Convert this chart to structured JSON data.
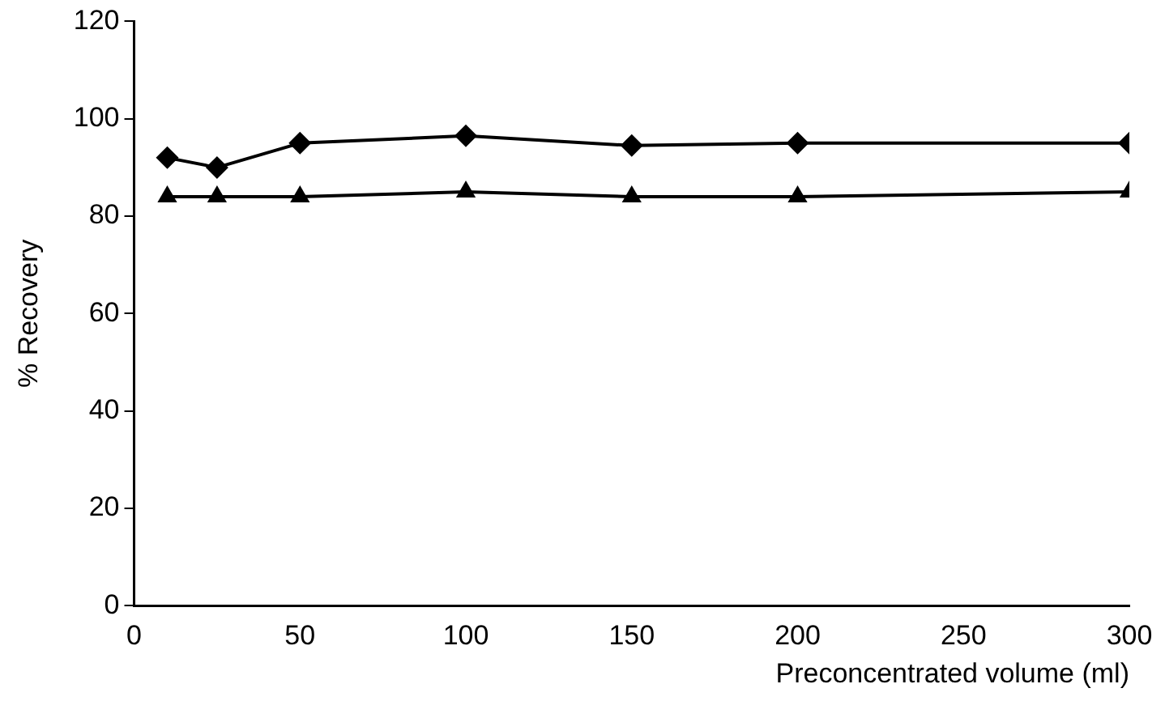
{
  "chart_data": {
    "type": "line",
    "xlabel": "Preconcentrated volume (ml)",
    "ylabel": "% Recovery",
    "x": [
      10,
      25,
      50,
      100,
      150,
      200,
      300
    ],
    "series": [
      {
        "color": "#000000",
        "marker": "diamond",
        "values": [
          92,
          90,
          95,
          96.5,
          94.5,
          95,
          95
        ]
      },
      {
        "color": "#000000",
        "marker": "triangle",
        "values": [
          84,
          84,
          84,
          85,
          84,
          84,
          85
        ]
      }
    ],
    "xlim": [
      0,
      300
    ],
    "xticks": [
      0,
      50,
      100,
      150,
      200,
      250,
      300
    ],
    "ylim": [
      0,
      120
    ],
    "yticks": [
      0,
      20,
      40,
      60,
      80,
      100,
      120
    ],
    "grid": false,
    "legend": false
  }
}
